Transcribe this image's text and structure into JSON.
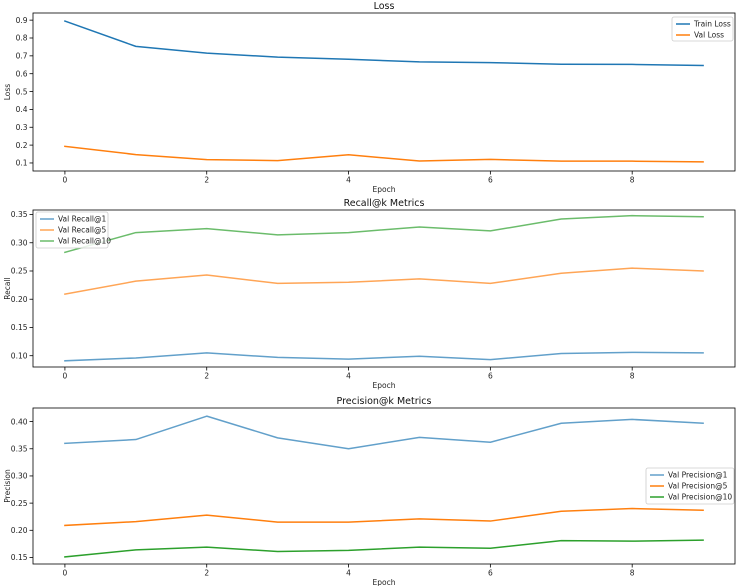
{
  "chart_data": [
    {
      "type": "line",
      "title": "Loss",
      "xlabel": "Epoch",
      "ylabel": "Loss",
      "x": [
        0,
        1,
        2,
        3,
        4,
        5,
        6,
        7,
        8,
        9
      ],
      "xlim": [
        -0.45,
        9.45
      ],
      "ylim": [
        0.055,
        0.94
      ],
      "xticks": [
        0,
        2,
        4,
        6,
        8
      ],
      "yticks": [
        0.1,
        0.2,
        0.3,
        0.4,
        0.5,
        0.6,
        0.7,
        0.8,
        0.9
      ],
      "ytick_decimals": 1,
      "legend_position": "upper right",
      "series": [
        {
          "name": "Train Loss",
          "color": "#1f77b4",
          "alpha": 1.0,
          "values": [
            0.895,
            0.753,
            0.715,
            0.693,
            0.681,
            0.666,
            0.662,
            0.653,
            0.652,
            0.646
          ]
        },
        {
          "name": "Val Loss",
          "color": "#ff7f0e",
          "alpha": 1.0,
          "values": [
            0.193,
            0.147,
            0.119,
            0.113,
            0.146,
            0.111,
            0.12,
            0.11,
            0.11,
            0.106
          ]
        }
      ]
    },
    {
      "type": "line",
      "title": "Recall@k Metrics",
      "xlabel": "Epoch",
      "ylabel": "Recall",
      "x": [
        0,
        1,
        2,
        3,
        4,
        5,
        6,
        7,
        8,
        9
      ],
      "xlim": [
        -0.45,
        9.45
      ],
      "ylim": [
        0.08,
        0.358
      ],
      "xticks": [
        0,
        2,
        4,
        6,
        8
      ],
      "yticks": [
        0.1,
        0.15,
        0.2,
        0.25,
        0.3,
        0.35
      ],
      "ytick_decimals": 2,
      "legend_position": "upper left",
      "series": [
        {
          "name": "Val Recall@1",
          "color": "#1f77b4",
          "alpha": 0.7,
          "values": [
            0.091,
            0.096,
            0.105,
            0.097,
            0.094,
            0.099,
            0.093,
            0.104,
            0.106,
            0.105
          ]
        },
        {
          "name": "Val Recall@5",
          "color": "#ff7f0e",
          "alpha": 0.7,
          "values": [
            0.209,
            0.232,
            0.243,
            0.228,
            0.23,
            0.236,
            0.228,
            0.246,
            0.255,
            0.25
          ]
        },
        {
          "name": "Val Recall@10",
          "color": "#2ca02c",
          "alpha": 0.7,
          "values": [
            0.283,
            0.318,
            0.325,
            0.314,
            0.318,
            0.328,
            0.321,
            0.342,
            0.348,
            0.346
          ]
        }
      ]
    },
    {
      "type": "line",
      "title": "Precision@k Metrics",
      "xlabel": "Epoch",
      "ylabel": "Precision",
      "x": [
        0,
        1,
        2,
        3,
        4,
        5,
        6,
        7,
        8,
        9
      ],
      "xlim": [
        -0.45,
        9.45
      ],
      "ylim": [
        0.138,
        0.425
      ],
      "xticks": [
        0,
        2,
        4,
        6,
        8
      ],
      "yticks": [
        0.15,
        0.2,
        0.25,
        0.3,
        0.35,
        0.4
      ],
      "ytick_decimals": 2,
      "legend_position": "center right",
      "series": [
        {
          "name": "Val Precision@1",
          "color": "#1f77b4",
          "alpha": 0.7,
          "values": [
            0.36,
            0.367,
            0.41,
            0.37,
            0.35,
            0.371,
            0.362,
            0.397,
            0.404,
            0.397
          ]
        },
        {
          "name": "Val Precision@5",
          "color": "#ff7f0e",
          "alpha": 1.0,
          "values": [
            0.209,
            0.216,
            0.228,
            0.215,
            0.215,
            0.221,
            0.217,
            0.235,
            0.24,
            0.237
          ]
        },
        {
          "name": "Val Precision@10",
          "color": "#2ca02c",
          "alpha": 1.0,
          "values": [
            0.151,
            0.164,
            0.169,
            0.161,
            0.163,
            0.169,
            0.167,
            0.181,
            0.18,
            0.182
          ]
        }
      ]
    }
  ]
}
